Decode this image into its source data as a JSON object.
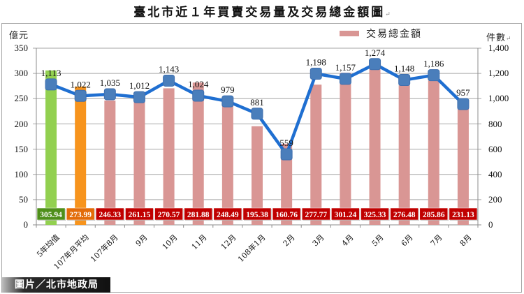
{
  "title": "臺北市近１年買賣交易量及交易總金額圖",
  "title_mark": "↵",
  "left_unit": "億元",
  "right_unit": "件數",
  "right_unit_mark": "↵",
  "legend": {
    "label": "交易總金額",
    "color": "#d99694"
  },
  "credit": "圖片／北市地政局",
  "left_ticks": [
    "350",
    "300",
    "250",
    "200",
    "150",
    "100",
    "50",
    "0"
  ],
  "right_ticks": [
    "1,400",
    "1,200",
    "1,000",
    "800",
    "600",
    "400",
    "200",
    "0"
  ],
  "chart_data": {
    "type": "bar",
    "title": "臺北市近１年買賣交易量及交易總金額圖",
    "xlabel": "",
    "ylabel": "億元",
    "y2label": "件數",
    "ylim": [
      0,
      350
    ],
    "y2lim": [
      0,
      1400
    ],
    "grid": true,
    "legend_position": "top-right",
    "categories": [
      "5年均值",
      "107年月平均",
      "107年8月",
      "9月",
      "10月",
      "11月",
      "12月",
      "108年1月",
      "2月",
      "3月",
      "4月",
      "5月",
      "6月",
      "7月",
      "8月"
    ],
    "series": [
      {
        "name": "交易總金額",
        "type": "bar",
        "axis": "left",
        "values": [
          305.94,
          273.99,
          246.33,
          261.15,
          270.57,
          281.88,
          248.49,
          195.38,
          160.76,
          277.77,
          301.24,
          325.33,
          276.48,
          285.86,
          231.13
        ],
        "labels": [
          "305.94",
          "273.99",
          "246.33",
          "261.15",
          "270.57",
          "281.88",
          "248.49",
          "195.38",
          "160.76",
          "277.77",
          "301.24",
          "325.33",
          "276.48",
          "285.86",
          "231.13"
        ],
        "colors": [
          "#92d050",
          "#f7941d",
          "#d99694",
          "#d99694",
          "#d99694",
          "#d99694",
          "#d99694",
          "#d99694",
          "#d99694",
          "#d99694",
          "#d99694",
          "#d99694",
          "#d99694",
          "#d99694",
          "#d99694"
        ],
        "label_box_colors": [
          "#4e8f1a",
          "#e36c09",
          "#c00000",
          "#c00000",
          "#c00000",
          "#c00000",
          "#c00000",
          "#c00000",
          "#c00000",
          "#c00000",
          "#c00000",
          "#c00000",
          "#c00000",
          "#c00000",
          "#c00000"
        ]
      },
      {
        "name": "件數",
        "type": "line",
        "axis": "right",
        "values": [
          1113,
          1022,
          1035,
          1012,
          1143,
          1024,
          979,
          881,
          559,
          1198,
          1157,
          1274,
          1148,
          1186,
          957
        ],
        "labels": [
          "1,113",
          "1,022",
          "1,035",
          "1,012",
          "1,143",
          "1,024",
          "979",
          "881",
          "559",
          "1,198",
          "1,157",
          "1,274",
          "1,148",
          "1,186",
          "957"
        ],
        "line_color": "#1f6fd1",
        "marker_color": "#4a7ebb"
      }
    ]
  }
}
